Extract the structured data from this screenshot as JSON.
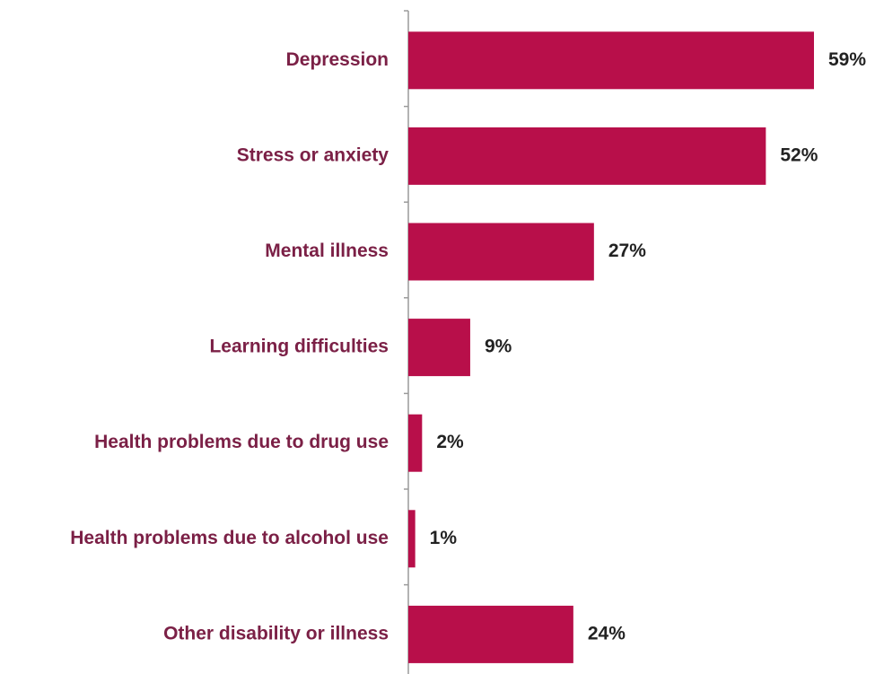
{
  "chart_data": {
    "type": "bar",
    "orientation": "horizontal",
    "categories": [
      "Depression",
      "Stress or anxiety",
      "Mental illness",
      "Learning difficulties",
      "Health problems due to drug use",
      "Health problems due to alcohol use",
      "Other disability or illness"
    ],
    "values": [
      59,
      52,
      27,
      9,
      2,
      1,
      24
    ],
    "value_labels": [
      "59%",
      "52%",
      "27%",
      "9%",
      "2%",
      "1%",
      "24%"
    ],
    "title": "",
    "xlabel": "",
    "ylabel": "",
    "xlim": [
      0,
      59
    ],
    "grid": false,
    "legend": "none",
    "colors": {
      "bar": "#b80f4a",
      "category_text": "#7b2046",
      "value_text": "#222222",
      "axis": "#9a9a9a"
    }
  }
}
